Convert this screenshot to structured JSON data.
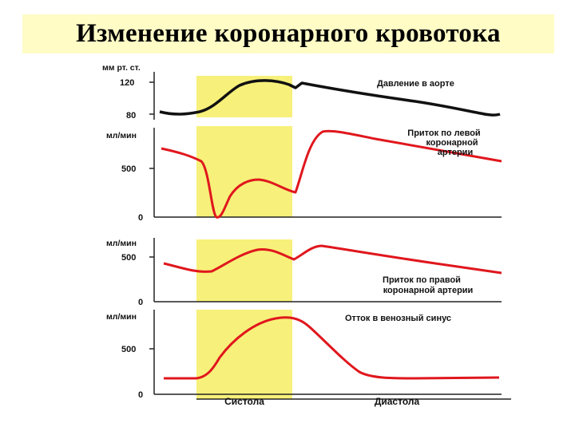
{
  "title": "Изменение коронарного кровотока",
  "colors": {
    "title_band": "#fffcc6",
    "systole_band": "#f7f07a",
    "curve_red": "#e0171d",
    "curve_black": "#111111"
  },
  "panels": [
    {
      "unit": "мм рт. ст.",
      "ticks": [
        "120",
        "80"
      ],
      "label_lines": [
        "Давление в аорте"
      ],
      "curve_color": "black"
    },
    {
      "unit": "мл/мин",
      "ticks": [
        "500",
        "0"
      ],
      "label_lines": [
        "Приток по левой",
        "коронарной",
        "артерии"
      ],
      "curve_color": "red"
    },
    {
      "unit": "мл/мин",
      "ticks": [
        "500",
        "0"
      ],
      "label_lines": [
        "Приток по правой",
        "коронарной артерии"
      ],
      "curve_color": "red"
    },
    {
      "unit": "мл/мин",
      "ticks": [
        "500",
        "0"
      ],
      "label_lines": [
        "Отток в венозный синус"
      ],
      "curve_color": "red"
    }
  ],
  "phases": {
    "systole": "Систола",
    "diastole": "Диастола"
  }
}
